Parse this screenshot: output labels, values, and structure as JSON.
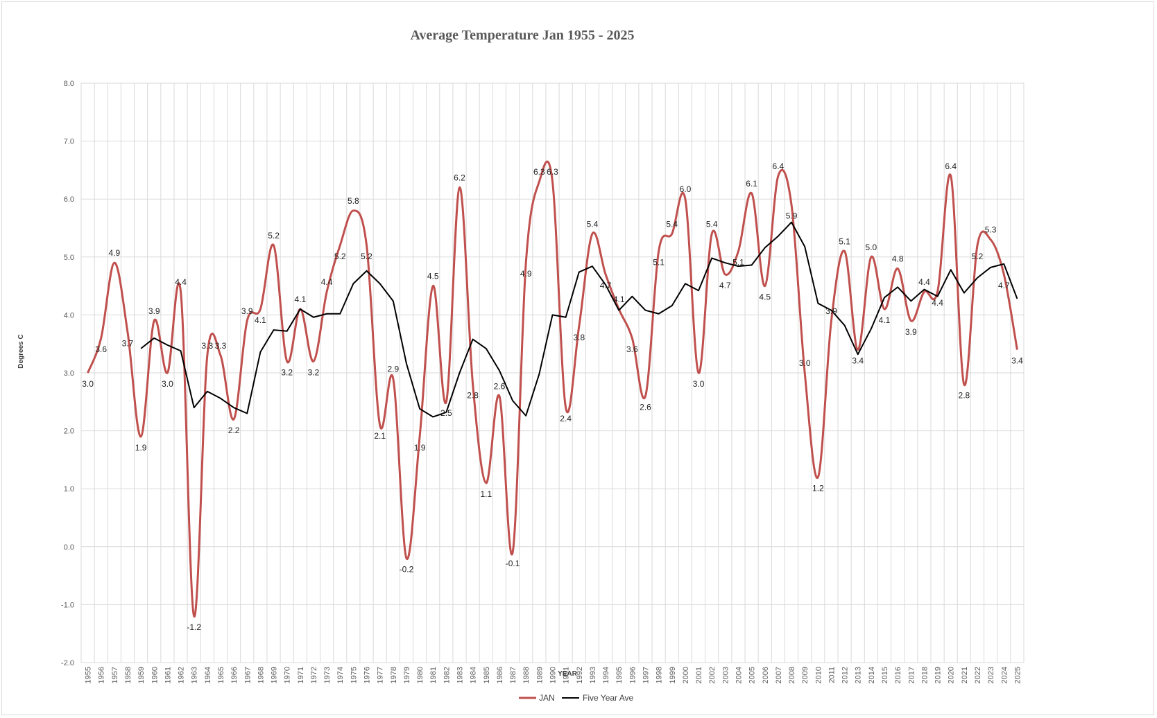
{
  "chart_data": {
    "type": "line",
    "title": "Average Temperature Jan 1955 - 2025",
    "xlabel": "YEAR",
    "ylabel": "Degrees C",
    "ylim": [
      -2.0,
      8.0
    ],
    "yticks": [
      "-2.0",
      "-1.0",
      "0.0",
      "1.0",
      "2.0",
      "3.0",
      "4.0",
      "5.0",
      "6.0",
      "7.0",
      "8.0"
    ],
    "grid": true,
    "legend_position": "bottom",
    "colors": {
      "jan": "#c0504d",
      "ave": "#000000",
      "grid": "#d9d9d9"
    },
    "x": [
      "1955",
      "1956",
      "1957",
      "1958",
      "1959",
      "1960",
      "1961",
      "1962",
      "1963",
      "1964",
      "1965",
      "1966",
      "1967",
      "1968",
      "1969",
      "1970",
      "1971",
      "1972",
      "1973",
      "1974",
      "1975",
      "1976",
      "1977",
      "1978",
      "1979",
      "1980",
      "1981",
      "1982",
      "1983",
      "1984",
      "1985",
      "1986",
      "1987",
      "1988",
      "1989",
      "1990",
      "1991",
      "1992",
      "1993",
      "1994",
      "1995",
      "1996",
      "1997",
      "1998",
      "1999",
      "2000",
      "2001",
      "2002",
      "2003",
      "2004",
      "2005",
      "2006",
      "2007",
      "2008",
      "2009",
      "2010",
      "2011",
      "2012",
      "2013",
      "2014",
      "2015",
      "2016",
      "2017",
      "2018",
      "2019",
      "2020",
      "2021",
      "2022",
      "2023",
      "2024",
      "2025"
    ],
    "series": [
      {
        "name": "JAN",
        "values": [
          3.0,
          3.6,
          4.9,
          3.7,
          1.9,
          3.9,
          3.0,
          4.4,
          -1.2,
          3.3,
          3.3,
          2.2,
          3.9,
          4.1,
          5.2,
          3.2,
          4.1,
          3.2,
          4.4,
          5.2,
          5.8,
          5.2,
          2.1,
          2.9,
          -0.2,
          1.9,
          4.5,
          2.5,
          6.2,
          2.8,
          1.1,
          2.6,
          -0.1,
          4.9,
          6.3,
          6.3,
          2.4,
          3.8,
          5.4,
          4.7,
          4.1,
          3.6,
          2.6,
          5.1,
          5.4,
          6.0,
          3.0,
          5.4,
          4.7,
          5.1,
          6.1,
          4.5,
          6.4,
          5.9,
          3.0,
          1.2,
          3.9,
          5.1,
          3.4,
          5.0,
          4.1,
          4.8,
          3.9,
          4.4,
          4.4,
          6.4,
          2.8,
          5.2,
          5.3,
          4.7,
          3.4
        ],
        "labels": [
          "3.0",
          "3.6",
          "4.9",
          "3.7",
          "1.9",
          "3.9",
          "3.0",
          "4.4",
          "-1.2",
          "3.3",
          "3.3",
          "2.2",
          "3.9",
          "4.1",
          "5.2",
          "3.2",
          "4.1",
          "3.2",
          "4.4",
          "5.2",
          "5.8",
          "5.2",
          "2.1",
          "2.9",
          "-0.2",
          "1.9",
          "4.5",
          "2.5",
          "6.2",
          "2.8",
          "1.1",
          "2.6",
          "-0.1",
          "4.9",
          "6.3",
          "6.3",
          "2.4",
          "3.8",
          "5.4",
          "4.7",
          "4.1",
          "3.6",
          "2.6",
          "5.1",
          "5.4",
          "6.0",
          "3.0",
          "5.4",
          "4.7",
          "5.1",
          "6.1",
          "4.5",
          "6.4",
          "5.9",
          "3.0",
          "1.2",
          "3.9",
          "5.1",
          "3.4",
          "5.0",
          "4.1",
          "4.8",
          "3.9",
          "4.4",
          "4.4",
          "6.4",
          "2.8",
          "5.2",
          "5.3",
          "4.7",
          "3.4"
        ]
      },
      {
        "name": "Five Year Ave",
        "values": [
          null,
          null,
          null,
          null,
          3.42,
          3.6,
          3.48,
          3.38,
          2.4,
          2.68,
          2.56,
          2.4,
          2.3,
          3.36,
          3.74,
          3.72,
          4.1,
          3.96,
          4.02,
          4.02,
          4.54,
          4.76,
          4.54,
          4.24,
          3.16,
          2.38,
          2.24,
          2.32,
          3.0,
          3.58,
          3.42,
          3.04,
          2.52,
          2.26,
          2.98,
          4.0,
          3.96,
          4.74,
          4.84,
          4.52,
          4.08,
          4.32,
          4.08,
          4.02,
          4.16,
          4.54,
          4.42,
          4.98,
          4.9,
          4.84,
          4.86,
          5.16,
          5.36,
          5.6,
          5.18,
          4.2,
          4.08,
          3.82,
          3.32,
          3.76,
          4.3,
          4.48,
          4.24,
          4.44,
          4.32,
          4.78,
          4.38,
          4.64,
          4.82,
          4.88,
          4.28
        ]
      }
    ]
  }
}
